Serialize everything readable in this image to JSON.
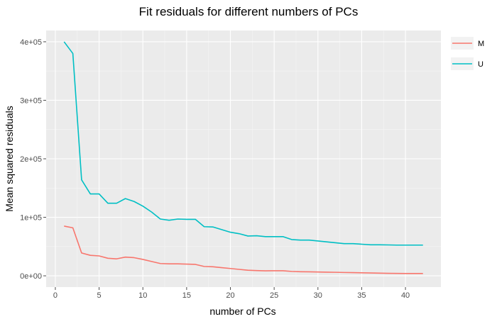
{
  "chart_data": {
    "type": "line",
    "title": "Fit residuals for different numbers of PCs",
    "xlabel": "number of PCs",
    "ylabel": "Mean squared residuals",
    "xlim": [
      -1.05,
      44.05
    ],
    "ylim": [
      -19300,
      419300
    ],
    "x_ticks": [
      0,
      5,
      10,
      15,
      20,
      25,
      30,
      35,
      40
    ],
    "x_tick_labels": [
      "0",
      "5",
      "10",
      "15",
      "20",
      "25",
      "30",
      "35",
      "40"
    ],
    "y_ticks": [
      0,
      100000,
      200000,
      300000,
      400000
    ],
    "y_tick_labels": [
      "0e+00",
      "1e+05",
      "2e+05",
      "3e+05",
      "4e+05"
    ],
    "grid": true,
    "legend_position": "right",
    "series": [
      {
        "name": "M",
        "color": "#F8766D",
        "x": [
          1,
          2,
          3,
          4,
          5,
          6,
          7,
          8,
          9,
          10,
          11,
          12,
          13,
          14,
          15,
          16,
          17,
          18,
          19,
          20,
          21,
          22,
          23,
          24,
          25,
          26,
          27,
          28,
          29,
          30,
          31,
          32,
          33,
          34,
          35,
          36,
          37,
          38,
          39,
          40,
          41,
          42
        ],
        "values": [
          85000,
          82000,
          39000,
          35000,
          34000,
          30000,
          29000,
          32000,
          31000,
          28000,
          24500,
          21000,
          20500,
          20500,
          20000,
          19500,
          16000,
          15500,
          14000,
          12500,
          11000,
          9500,
          9000,
          8500,
          8700,
          8600,
          7500,
          7000,
          6800,
          6500,
          6200,
          6000,
          5700,
          5500,
          5100,
          4800,
          4500,
          4200,
          4100,
          4000,
          3900,
          3900
        ]
      },
      {
        "name": "U",
        "color": "#00BFC4",
        "x": [
          1,
          2,
          3,
          4,
          5,
          6,
          7,
          8,
          9,
          10,
          11,
          12,
          13,
          14,
          15,
          16,
          17,
          18,
          19,
          20,
          21,
          22,
          23,
          24,
          25,
          26,
          27,
          28,
          29,
          30,
          31,
          32,
          33,
          34,
          35,
          36,
          37,
          38,
          39,
          40,
          41,
          42
        ],
        "values": [
          400000,
          380000,
          164000,
          140000,
          140000,
          124000,
          124000,
          132000,
          127000,
          119000,
          109000,
          97000,
          95000,
          97000,
          96500,
          96500,
          84000,
          83500,
          79000,
          74500,
          72000,
          68000,
          68500,
          67000,
          67000,
          67000,
          62000,
          61000,
          61000,
          59500,
          58000,
          56500,
          55000,
          55000,
          54000,
          53000,
          53000,
          52800,
          52500,
          52500,
          52500,
          52500
        ]
      }
    ]
  }
}
